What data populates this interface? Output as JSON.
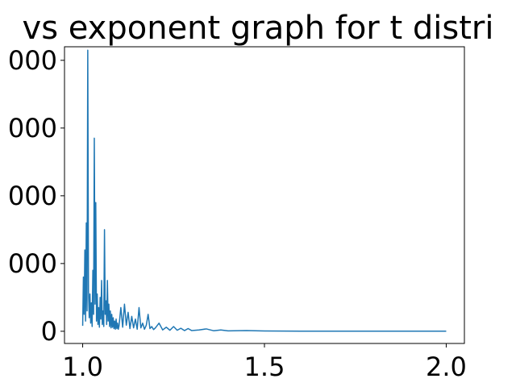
{
  "chart_data": {
    "type": "line",
    "title": "vs exponent graph for t distri",
    "xlabel": "",
    "ylabel": "",
    "xlim": [
      0.95,
      2.05
    ],
    "ylim": [
      -1800,
      42000
    ],
    "xticks": [
      1.0,
      1.5,
      2.0
    ],
    "xtick_labels": [
      "1.0",
      "1.5",
      "2.0"
    ],
    "yticks": [
      0,
      10000,
      20000,
      30000,
      40000
    ],
    "ytick_labels": [
      "0",
      "000",
      "000",
      "000",
      "000"
    ],
    "grid": false,
    "color": "#1f77b4",
    "series": [
      {
        "name": "",
        "x": [
          1.0,
          1.002,
          1.004,
          1.006,
          1.008,
          1.01,
          1.012,
          1.014,
          1.016,
          1.018,
          1.02,
          1.022,
          1.024,
          1.026,
          1.028,
          1.03,
          1.032,
          1.034,
          1.036,
          1.038,
          1.04,
          1.042,
          1.044,
          1.046,
          1.048,
          1.05,
          1.052,
          1.054,
          1.056,
          1.058,
          1.06,
          1.062,
          1.064,
          1.066,
          1.068,
          1.07,
          1.072,
          1.074,
          1.076,
          1.078,
          1.08,
          1.082,
          1.084,
          1.086,
          1.088,
          1.09,
          1.092,
          1.094,
          1.096,
          1.098,
          1.1,
          1.105,
          1.11,
          1.115,
          1.12,
          1.125,
          1.13,
          1.135,
          1.14,
          1.145,
          1.15,
          1.155,
          1.16,
          1.165,
          1.17,
          1.175,
          1.18,
          1.185,
          1.19,
          1.195,
          1.2,
          1.21,
          1.22,
          1.23,
          1.24,
          1.25,
          1.26,
          1.27,
          1.28,
          1.29,
          1.3,
          1.32,
          1.34,
          1.36,
          1.38,
          1.4,
          1.45,
          1.5,
          1.6,
          1.7,
          1.8,
          1.9,
          2.0
        ],
        "y": [
          800,
          8000,
          2500,
          12000,
          1500,
          16000,
          3000,
          41500,
          6000,
          2000,
          5500,
          1200,
          4200,
          700,
          9000,
          2500,
          28500,
          4000,
          19000,
          1500,
          5500,
          1000,
          3500,
          600,
          5000,
          1800,
          7500,
          1000,
          3000,
          700,
          15000,
          2500,
          4500,
          1000,
          7500,
          1500,
          4000,
          700,
          3000,
          500,
          2500,
          600,
          2000,
          400,
          1500,
          300,
          1800,
          400,
          1200,
          300,
          800,
          3500,
          600,
          4000,
          900,
          2800,
          400,
          2200,
          500,
          1800,
          300,
          3500,
          500,
          1200,
          300,
          900,
          2500,
          400,
          700,
          250,
          500,
          1200,
          200,
          600,
          150,
          700,
          150,
          450,
          100,
          400,
          100,
          200,
          350,
          80,
          200,
          60,
          100,
          40,
          20,
          20,
          15,
          15,
          15
        ]
      }
    ]
  }
}
